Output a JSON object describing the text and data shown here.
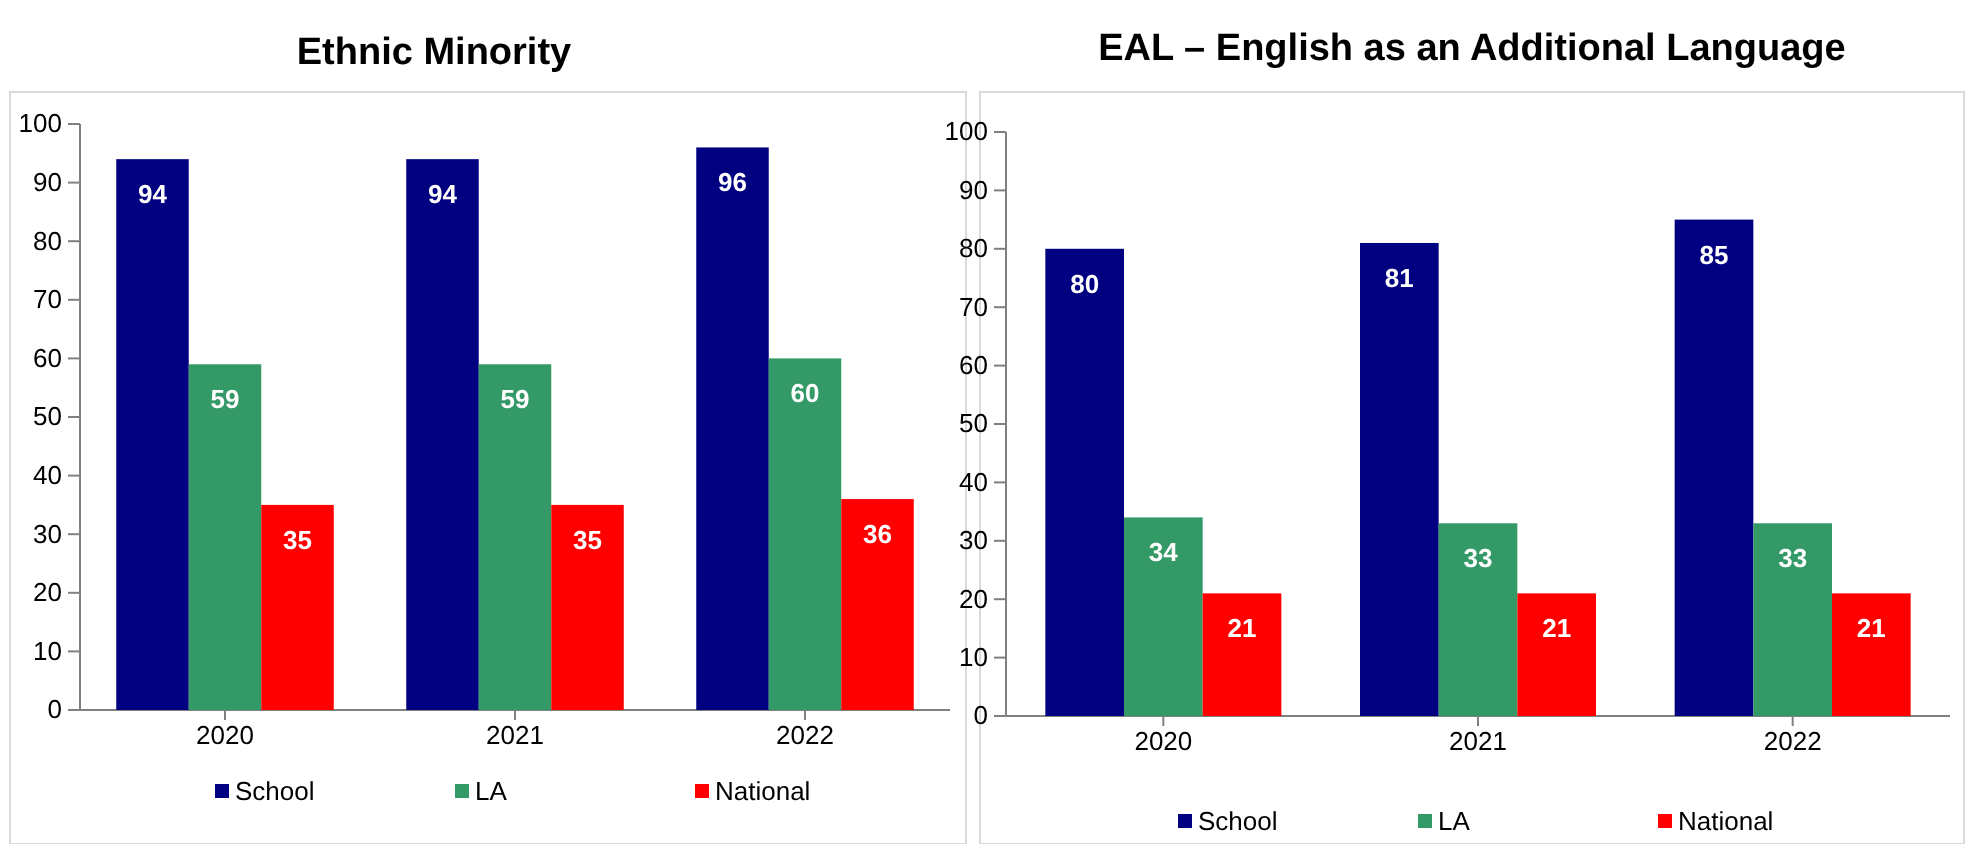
{
  "chart_data": [
    {
      "type": "bar",
      "title": "Ethnic Minority",
      "categories": [
        "2020",
        "2021",
        "2022"
      ],
      "series": [
        {
          "name": "School",
          "color": "#000080",
          "values": [
            94,
            94,
            96
          ]
        },
        {
          "name": "LA",
          "color": "#339966",
          "values": [
            59,
            59,
            60
          ]
        },
        {
          "name": "National",
          "color": "#ff0000",
          "values": [
            35,
            35,
            36
          ]
        }
      ],
      "ylim": [
        0,
        100
      ],
      "yticks": [
        0,
        10,
        20,
        30,
        40,
        50,
        60,
        70,
        80,
        90,
        100
      ],
      "data_labels": true,
      "legend": "bottom",
      "grid": false
    },
    {
      "type": "bar",
      "title": "EAL – English as an Additional Language",
      "categories": [
        "2020",
        "2021",
        "2022"
      ],
      "series": [
        {
          "name": "School",
          "color": "#000080",
          "values": [
            80,
            81,
            85
          ]
        },
        {
          "name": "LA",
          "color": "#339966",
          "values": [
            34,
            33,
            33
          ]
        },
        {
          "name": "National",
          "color": "#ff0000",
          "values": [
            21,
            21,
            21
          ]
        }
      ],
      "ylim": [
        0,
        100
      ],
      "yticks": [
        0,
        10,
        20,
        30,
        40,
        50,
        60,
        70,
        80,
        90,
        100
      ],
      "data_labels": true,
      "legend": "bottom",
      "grid": false
    }
  ]
}
